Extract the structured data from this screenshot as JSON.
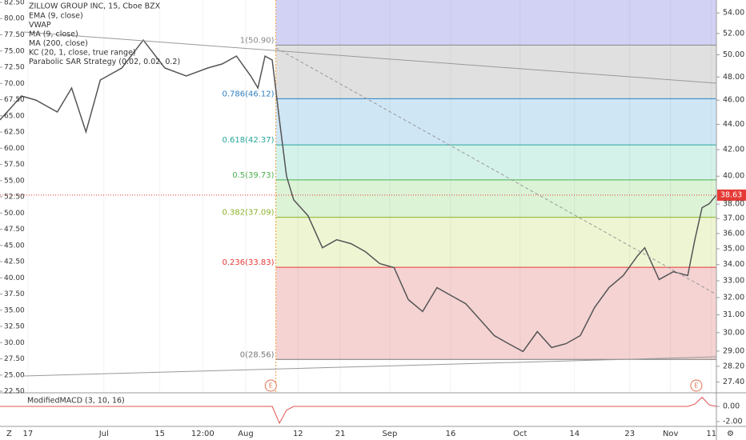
{
  "chart_data": {
    "type": "line",
    "title": "ZILLOW GROUP INC, 15, Cboe BZX",
    "indicators": [
      "EMA (9, close)",
      "VWAP",
      "MA (9, close)",
      "MA (200, close)",
      "KC (20, 1, close, true range)",
      "Parabolic SAR Strategy (0.02, 0.02, 0.2)"
    ],
    "x": [
      0,
      3,
      5,
      8,
      10,
      12,
      14,
      17,
      20,
      23,
      26,
      29,
      31,
      33,
      35,
      36,
      37,
      38,
      39,
      40,
      41,
      43,
      45,
      47,
      49,
      51,
      53,
      55,
      57,
      59,
      61,
      63,
      65,
      67,
      69,
      71,
      73,
      75,
      77,
      79,
      81,
      83,
      85,
      87,
      89,
      90,
      92,
      94,
      96,
      97,
      98,
      99,
      100
    ],
    "series": [
      {
        "color": "#555555",
        "values": [
          44.36,
          46.35,
          46.01,
          45.01,
          47.04,
          43.39,
          47.74,
          48.8,
          51.37,
          48.8,
          48.09,
          48.8,
          49.16,
          49.88,
          48.09,
          47.04,
          49.88,
          49.52,
          44.36,
          40.0,
          38.3,
          37.2,
          35.07,
          35.59,
          35.33,
          34.82,
          34.06,
          33.81,
          31.88,
          31.19,
          32.59,
          32.11,
          31.64,
          30.73,
          29.84,
          29.4,
          28.98,
          30.06,
          29.19,
          29.4,
          29.84,
          31.42,
          32.59,
          33.32,
          34.56,
          35.07,
          33.08,
          33.56,
          33.32,
          35.59,
          37.75,
          38.02,
          38.63
        ]
      }
    ],
    "xlim": [
      0,
      100
    ],
    "xticks": [
      {
        "value": 3.9,
        "label": "17"
      },
      {
        "value": 14.5,
        "label": "Jul"
      },
      {
        "value": 22.3,
        "label": "15"
      },
      {
        "value": 28.3,
        "label": "12:00"
      },
      {
        "value": 34.3,
        "label": "Aug"
      },
      {
        "value": 41.6,
        "label": "12"
      },
      {
        "value": 47.5,
        "label": "21"
      },
      {
        "value": 54.4,
        "label": "Sep"
      },
      {
        "value": 62.9,
        "label": "16"
      },
      {
        "value": 72.6,
        "label": "Oct"
      },
      {
        "value": 80.2,
        "label": "14"
      },
      {
        "value": 87.9,
        "label": "23"
      },
      {
        "value": 93.6,
        "label": "Nov"
      },
      {
        "value": 99.3,
        "label": "11"
      }
    ],
    "log_scale": true,
    "ylim": [
      26.9,
      55.3
    ],
    "yticks": [
      {
        "value": 54,
        "label": "54.00"
      },
      {
        "value": 52,
        "label": "52.00"
      },
      {
        "value": 50,
        "label": "50.00"
      },
      {
        "value": 48,
        "label": "48.00"
      },
      {
        "value": 46,
        "label": "46.00"
      },
      {
        "value": 44,
        "label": "44.00"
      },
      {
        "value": 42,
        "label": "42.00"
      },
      {
        "value": 40,
        "label": "40.00"
      },
      {
        "value": 38,
        "label": "38.00"
      },
      {
        "value": 37,
        "label": "37.00"
      },
      {
        "value": 36,
        "label": "36.00"
      },
      {
        "value": 35,
        "label": "35.00"
      },
      {
        "value": 34,
        "label": "34.00"
      },
      {
        "value": 33,
        "label": "33.00"
      },
      {
        "value": 32,
        "label": "32.00"
      },
      {
        "value": 31,
        "label": "31.00"
      },
      {
        "value": 30,
        "label": "30.00"
      },
      {
        "value": 29,
        "label": "29.00"
      },
      {
        "value": 28.2,
        "label": "28.20"
      },
      {
        "value": 27.4,
        "label": "27.40"
      }
    ],
    "y2lim": [
      22.38,
      82.87
    ],
    "y2ticks": [
      {
        "value": 82.5,
        "label": "82.50"
      },
      {
        "value": 80,
        "label": "80.00"
      },
      {
        "value": 77.5,
        "label": "77.50"
      },
      {
        "value": 75,
        "label": "75.00"
      },
      {
        "value": 72.5,
        "label": "72.50"
      },
      {
        "value": 70,
        "label": "70.00"
      },
      {
        "value": 67.5,
        "label": "67.50"
      },
      {
        "value": 65,
        "label": "65.00"
      },
      {
        "value": 62.5,
        "label": "62.50"
      },
      {
        "value": 60,
        "label": "60.00"
      },
      {
        "value": 57.5,
        "label": "57.50"
      },
      {
        "value": 55,
        "label": "55.00"
      },
      {
        "value": 52.5,
        "label": "52.50"
      },
      {
        "value": 50,
        "label": "50.00"
      },
      {
        "value": 47.5,
        "label": "47.50"
      },
      {
        "value": 45,
        "label": "45.00"
      },
      {
        "value": 42.5,
        "label": "42.50"
      },
      {
        "value": 40,
        "label": "40.00"
      },
      {
        "value": 37.5,
        "label": "37.50"
      },
      {
        "value": 35,
        "label": "35.00"
      },
      {
        "value": 32.5,
        "label": "32.50"
      },
      {
        "value": 30,
        "label": "30.00"
      },
      {
        "value": 27.5,
        "label": "27.50"
      },
      {
        "value": 25,
        "label": "25.00"
      },
      {
        "value": 22.5,
        "label": "22.50"
      }
    ],
    "fib_start_x": 38.5,
    "fib_levels": [
      {
        "label": "1(50.90)",
        "value": 50.9,
        "color": "#888888",
        "band": "#e0e0e0"
      },
      {
        "label": "0.786(46.12)",
        "value": 46.12,
        "color": "#2f7fc1",
        "band": "#cfe6f5"
      },
      {
        "label": "0.618(42.37)",
        "value": 42.37,
        "color": "#26a69a",
        "band": "#d4f2ea"
      },
      {
        "label": "0.5(39.73)",
        "value": 39.73,
        "color": "#4caf50",
        "band": "#dcf3d6"
      },
      {
        "label": "0.382(37.09)",
        "value": 37.09,
        "color": "#8bb22b",
        "band": "#eef5d3"
      },
      {
        "label": "0.236(33.83)",
        "value": 33.83,
        "color": "#e53935",
        "band": "#f5d3d3"
      },
      {
        "label": "0(28.56)",
        "value": 28.56,
        "color": "#777777",
        "band": "#f5d3d3"
      }
    ],
    "last_price": 38.63,
    "events": [
      {
        "x": 37.8,
        "label": "E"
      },
      {
        "x": 97.2,
        "label": "E"
      }
    ],
    "macd": {
      "title": "ModifiedMACD (3, 10, 16)",
      "ylim": [
        -2.53,
        1.58
      ],
      "yticks": [
        {
          "value": 0,
          "label": "0.00"
        },
        {
          "value": -2,
          "label": "-2.00"
        }
      ],
      "values": [
        0,
        0,
        0,
        0,
        0,
        0,
        0,
        0,
        0,
        0,
        0,
        0,
        0,
        0,
        0,
        0,
        0,
        0,
        -2.2,
        -0.5,
        0,
        0,
        0,
        0,
        0,
        0,
        0,
        0,
        0,
        0,
        0,
        0,
        0,
        0,
        0,
        0,
        0,
        0,
        0,
        0,
        0,
        0,
        0,
        0,
        0,
        0,
        0,
        0,
        0,
        0.3,
        1.2,
        0.2,
        0
      ]
    }
  }
}
